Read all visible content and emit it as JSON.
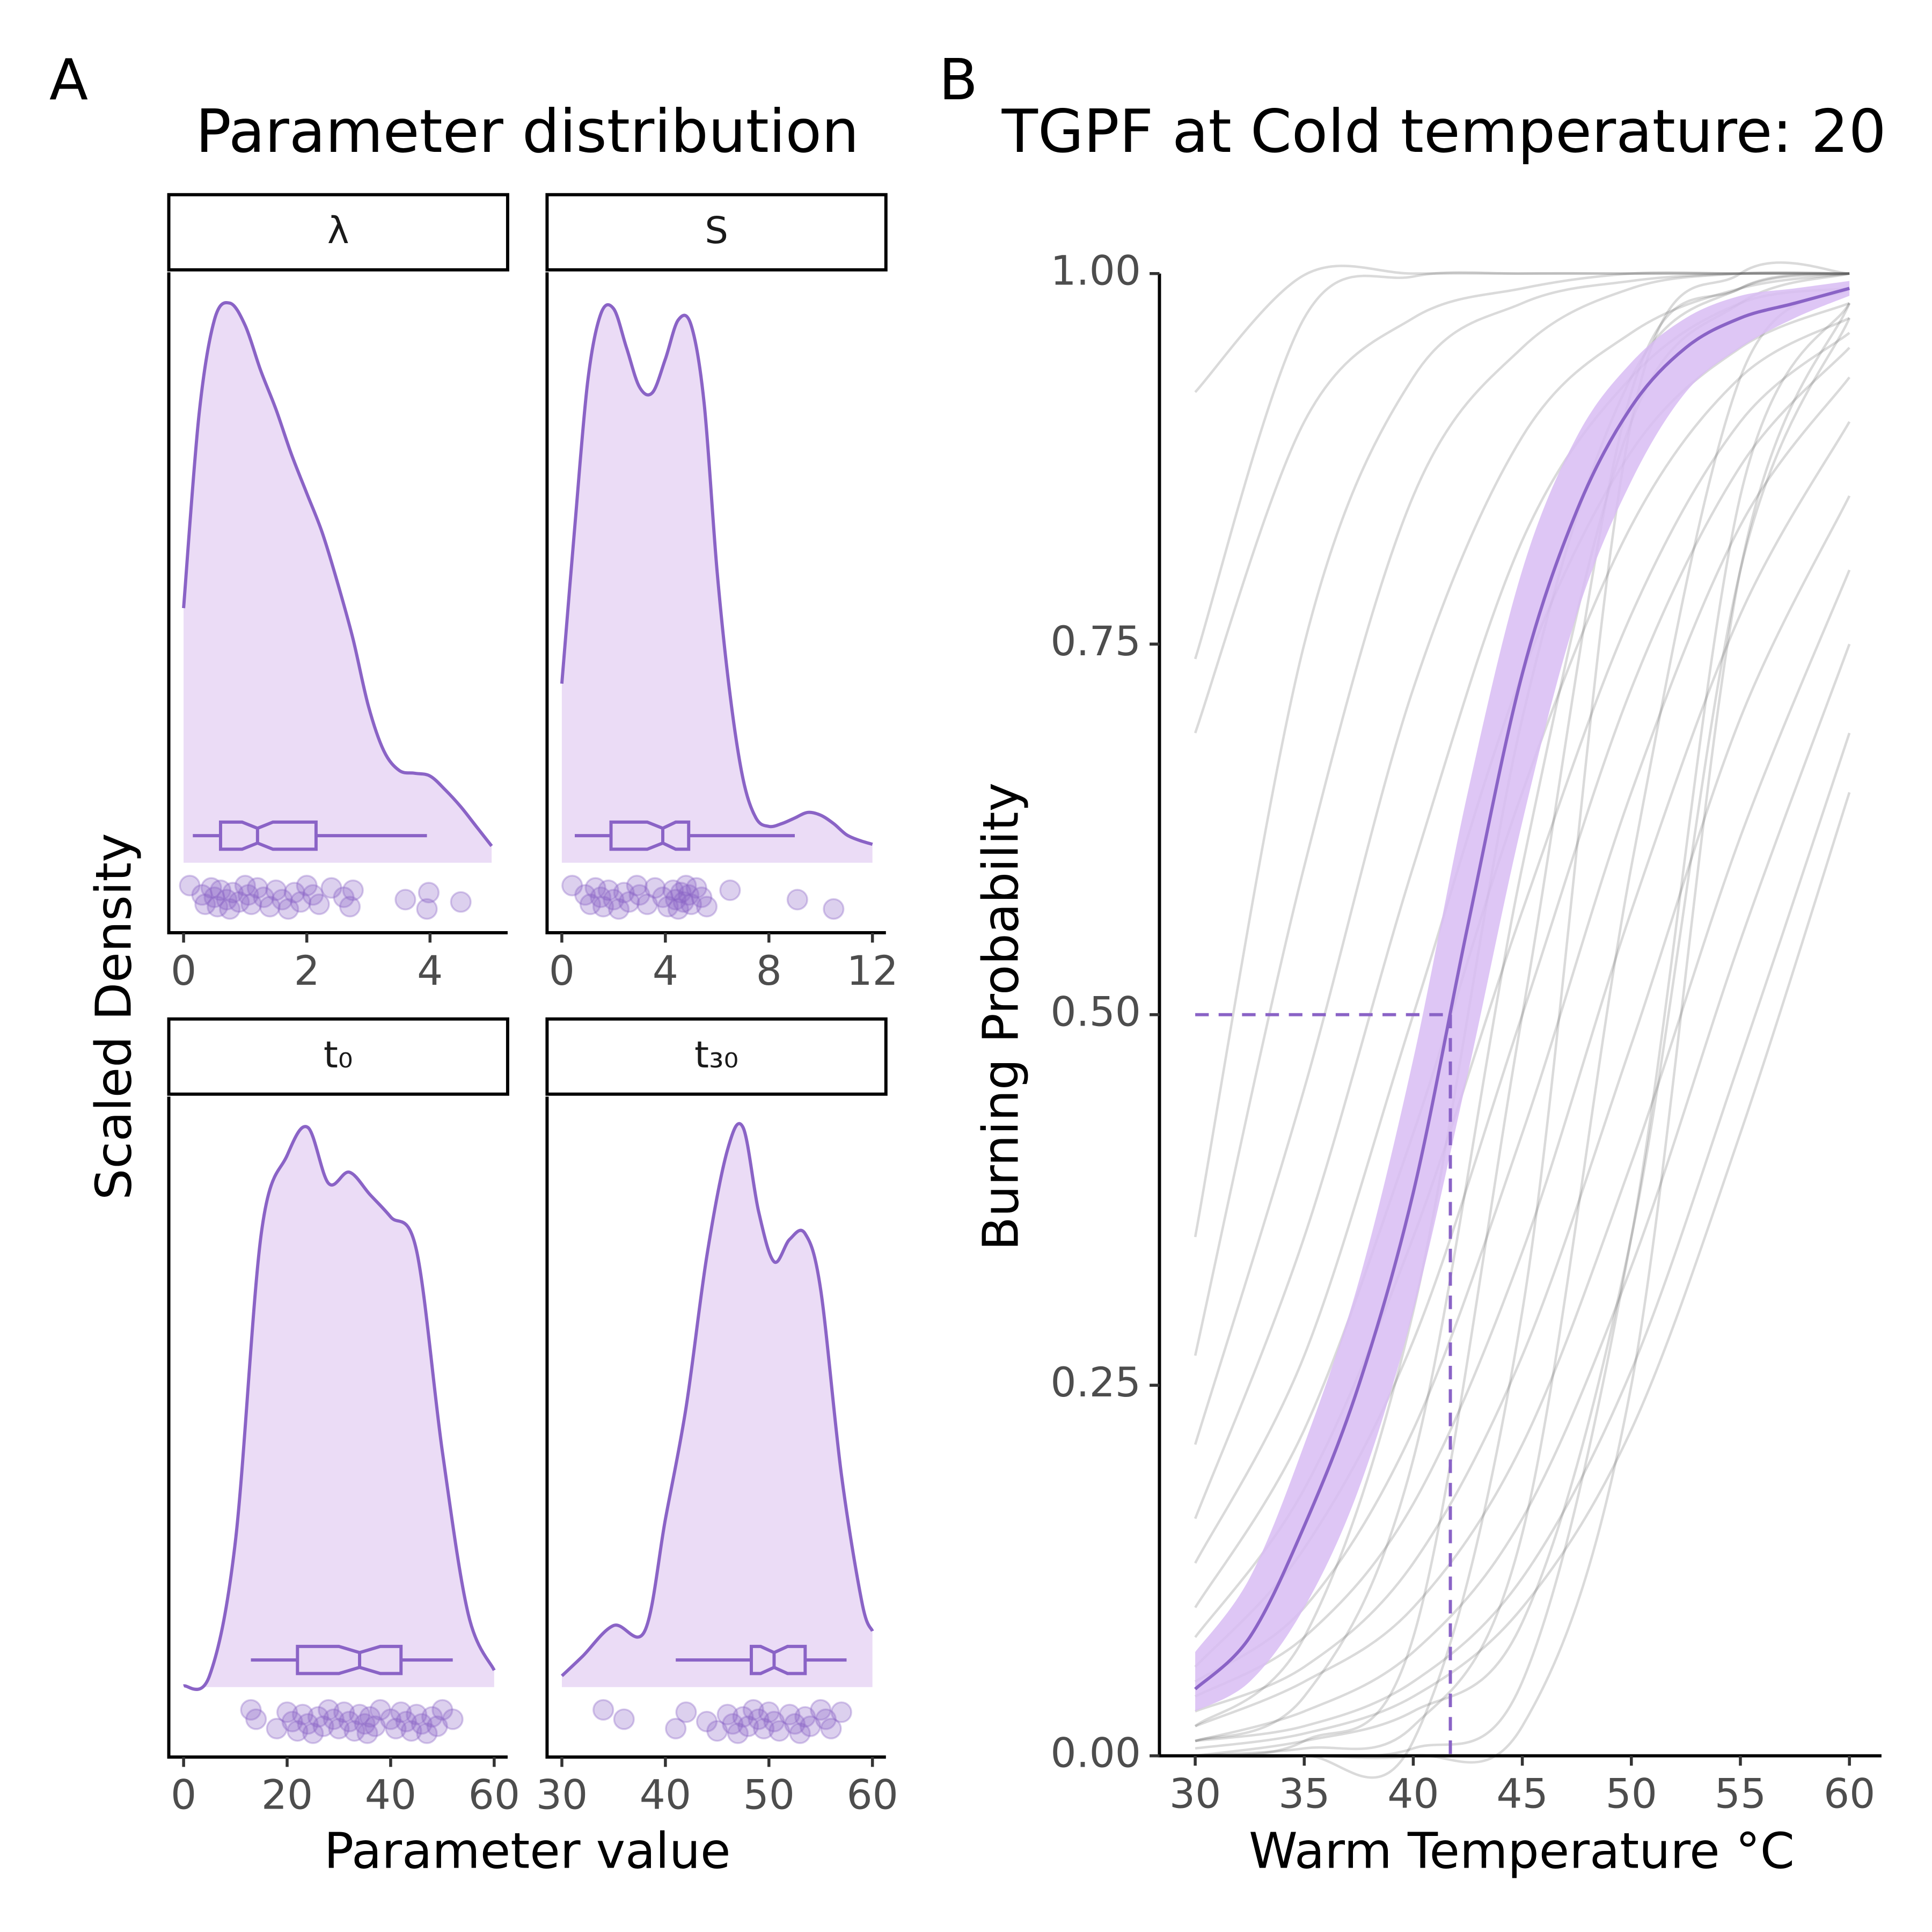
{
  "chart_data": [
    {
      "type": "density",
      "panel": "A",
      "title": "Parameter distribution",
      "xlabel": "Parameter value",
      "ylabel": "Scaled Density",
      "color": "#8a63c6",
      "fill_color": "#ebdcf6",
      "ylim": [
        -0.125,
        1.055
      ],
      "facets": [
        {
          "strip": "λ",
          "xlim": [
            -0.24,
            5.26
          ],
          "xticks": [
            0,
            2,
            4
          ],
          "x": [
            0,
            0.25,
            0.5,
            0.75,
            1,
            1.25,
            1.5,
            1.75,
            2,
            2.25,
            2.5,
            2.75,
            3,
            3.25,
            3.5,
            3.75,
            4,
            4.25,
            4.5,
            4.75,
            5
          ],
          "density": [
            0.455,
            0.8,
            0.97,
            1.0,
            0.96,
            0.88,
            0.81,
            0.73,
            0.66,
            0.59,
            0.5,
            0.4,
            0.28,
            0.2,
            0.165,
            0.16,
            0.155,
            0.13,
            0.1,
            0.065,
            0.03
          ],
          "box": {
            "whisker_low": 0.15,
            "q1": 0.6,
            "notch_low": 0.95,
            "median": 1.2,
            "notch_high": 1.45,
            "q3": 2.15,
            "whisker_high": 3.95
          },
          "points": [
            0.1,
            0.3,
            0.35,
            0.45,
            0.5,
            0.55,
            0.6,
            0.7,
            0.75,
            0.8,
            0.9,
            1.0,
            1.05,
            1.1,
            1.2,
            1.3,
            1.4,
            1.5,
            1.6,
            1.7,
            1.8,
            1.9,
            2.0,
            2.1,
            2.2,
            2.4,
            2.6,
            2.7,
            2.75,
            3.6,
            3.95,
            3.98,
            4.5
          ]
        },
        {
          "strip": "S",
          "xlim": [
            -0.57,
            12.52
          ],
          "xticks": [
            0,
            4,
            8,
            12
          ],
          "x": [
            0,
            0.5,
            1,
            1.5,
            2,
            2.5,
            3,
            3.5,
            4,
            4.5,
            5,
            5.5,
            6,
            6.5,
            7,
            7.5,
            8,
            8.5,
            9,
            9.5,
            10,
            10.5,
            11,
            11.5,
            12
          ],
          "density": [
            0.32,
            0.6,
            0.86,
            0.98,
            0.99,
            0.92,
            0.85,
            0.84,
            0.9,
            0.97,
            0.96,
            0.82,
            0.52,
            0.3,
            0.15,
            0.08,
            0.065,
            0.07,
            0.08,
            0.09,
            0.085,
            0.07,
            0.05,
            0.04,
            0.033
          ],
          "box": {
            "whisker_low": 0.5,
            "q1": 1.9,
            "notch_low": 3.3,
            "median": 3.9,
            "notch_high": 4.4,
            "q3": 4.9,
            "whisker_high": 9
          },
          "points": [
            0.4,
            0.9,
            1.1,
            1.3,
            1.5,
            1.6,
            1.8,
            2.0,
            2.2,
            2.4,
            2.6,
            2.9,
            3.0,
            3.3,
            3.6,
            3.9,
            4.1,
            4.3,
            4.4,
            4.5,
            4.6,
            4.7,
            4.8,
            4.9,
            5.0,
            5.2,
            5.4,
            5.6,
            6.5,
            9.1,
            10.5
          ]
        },
        {
          "strip": "t₀",
          "xlim": [
            -2.86,
            62.6
          ],
          "xticks": [
            0,
            20,
            40,
            60
          ],
          "x": [
            0,
            5,
            10,
            15,
            20,
            24,
            28,
            32,
            36,
            40,
            45,
            50,
            55,
            60
          ],
          "density": [
            0.002,
            0.02,
            0.26,
            0.81,
            0.95,
            1.0,
            0.9,
            0.92,
            0.88,
            0.84,
            0.78,
            0.42,
            0.13,
            0.03
          ],
          "box": {
            "whisker_low": 13,
            "q1": 22,
            "notch_low": 30,
            "median": 34,
            "notch_high": 38,
            "q3": 42,
            "whisker_high": 52
          },
          "points": [
            13,
            14,
            18,
            20,
            21,
            22,
            23,
            24,
            25,
            26,
            27,
            28,
            29,
            30,
            31,
            32,
            33,
            34,
            35,
            35.5,
            36,
            37,
            38,
            40,
            41,
            42,
            43,
            44,
            45,
            46,
            47,
            48,
            49,
            50,
            52
          ]
        },
        {
          "strip": "t₃₀",
          "xlim": [
            28.57,
            61.3
          ],
          "xticks": [
            30,
            40,
            50,
            60
          ],
          "x": [
            30,
            32,
            35,
            38,
            40,
            42,
            44,
            46,
            47.5,
            49,
            50.5,
            52,
            53.5,
            55,
            57,
            59,
            60
          ],
          "density": [
            0.02,
            0.055,
            0.11,
            0.1,
            0.3,
            0.5,
            0.77,
            0.96,
            1.0,
            0.85,
            0.76,
            0.8,
            0.81,
            0.71,
            0.38,
            0.15,
            0.1
          ],
          "box": {
            "whisker_low": 41,
            "q1": 48.3,
            "notch_low": 49.2,
            "median": 50.5,
            "notch_high": 51.8,
            "q3": 53.5,
            "whisker_high": 57.5
          },
          "points": [
            34,
            36,
            41,
            42,
            44,
            45,
            46,
            46.5,
            47,
            47.5,
            48,
            48.5,
            49,
            49.5,
            50,
            50.5,
            51,
            52,
            52.5,
            53,
            53.5,
            54,
            55,
            55.5,
            56,
            57
          ]
        }
      ]
    },
    {
      "type": "line",
      "panel": "B",
      "title": "TGPF at Cold temperature: 20",
      "xlabel": "Warm Temperature °C",
      "ylabel": "Burning Probability",
      "xlim": [
        28.36,
        61.47
      ],
      "ylim": [
        0,
        1
      ],
      "xticks": [
        30,
        35,
        40,
        45,
        50,
        55,
        60
      ],
      "yticks": [
        {
          "value": 0,
          "label": "0.00"
        },
        {
          "value": 0.25,
          "label": "0.25"
        },
        {
          "value": 0.5,
          "label": "0.50"
        },
        {
          "value": 0.75,
          "label": "0.75"
        },
        {
          "value": 1,
          "label": "1.00"
        }
      ],
      "gray_color": "#555555",
      "x": [
        30,
        35,
        40,
        45,
        50,
        55,
        60
      ],
      "series": [
        {
          "values": [
            0.92,
            0.999,
            1,
            1,
            1,
            1,
            1
          ]
        },
        {
          "values": [
            0.74,
            0.97,
            0.998,
            1,
            1,
            1,
            1
          ]
        },
        {
          "values": [
            0.69,
            0.9,
            0.97,
            0.99,
            1,
            1,
            1
          ]
        },
        {
          "values": [
            0.35,
            0.75,
            0.93,
            0.98,
            0.995,
            1,
            1
          ]
        },
        {
          "values": [
            0.27,
            0.6,
            0.85,
            0.95,
            0.99,
            1,
            1
          ]
        },
        {
          "values": [
            0.21,
            0.45,
            0.72,
            0.89,
            0.96,
            0.99,
            1
          ]
        },
        {
          "values": [
            0.16,
            0.35,
            0.6,
            0.82,
            0.93,
            0.98,
            0.99
          ]
        },
        {
          "values": [
            0.13,
            0.27,
            0.5,
            0.73,
            0.88,
            0.95,
            0.98
          ]
        },
        {
          "values": [
            0.1,
            0.22,
            0.42,
            0.65,
            0.83,
            0.93,
            0.97
          ]
        },
        {
          "values": [
            0.08,
            0.18,
            0.35,
            0.57,
            0.77,
            0.9,
            0.96
          ]
        },
        {
          "values": [
            0.06,
            0.14,
            0.28,
            0.5,
            0.72,
            0.87,
            0.95
          ]
        },
        {
          "values": [
            0.05,
            0.1,
            0.22,
            0.42,
            0.65,
            0.83,
            0.93
          ]
        },
        {
          "values": [
            0.04,
            0.08,
            0.17,
            0.34,
            0.57,
            0.77,
            0.9
          ]
        },
        {
          "values": [
            0.03,
            0.06,
            0.13,
            0.27,
            0.48,
            0.7,
            0.85
          ]
        },
        {
          "values": [
            0.02,
            0.05,
            0.1,
            0.21,
            0.4,
            0.62,
            0.8
          ]
        },
        {
          "values": [
            0.01,
            0.03,
            0.07,
            0.16,
            0.33,
            0.55,
            0.75
          ]
        },
        {
          "values": [
            0.01,
            0.02,
            0.05,
            0.12,
            0.26,
            0.47,
            0.69
          ]
        },
        {
          "values": [
            0.005,
            0.015,
            0.04,
            0.1,
            0.22,
            0.42,
            0.65
          ]
        },
        {
          "values": [
            0,
            0.01,
            0.03,
            0.09,
            0.35,
            0.8,
            0.97
          ]
        },
        {
          "values": [
            0,
            0.005,
            0.02,
            0.15,
            0.6,
            0.93,
            0.99
          ]
        },
        {
          "values": [
            0,
            0,
            0.01,
            0.3,
            0.9,
            1,
            1
          ]
        },
        {
          "values": [
            0,
            0.01,
            0.08,
            0.5,
            0.92,
            0.99,
            1
          ]
        },
        {
          "values": [
            0,
            0,
            0.005,
            0.05,
            0.35,
            0.85,
            0.98
          ]
        },
        {
          "values": [
            0,
            0,
            0,
            0.02,
            0.25,
            0.8,
            0.98
          ]
        },
        {
          "values": [
            0.01,
            0.04,
            0.2,
            0.6,
            0.9,
            0.98,
            1
          ]
        },
        {
          "values": [
            0.02,
            0.08,
            0.3,
            0.7,
            0.93,
            0.99,
            1
          ]
        }
      ],
      "fit": {
        "color": "#8a63c6",
        "ribbon_color": "#d8bcf3",
        "x": [
          30,
          32.5,
          35,
          37.5,
          40,
          42.5,
          45,
          47.5,
          50,
          52.5,
          55,
          57.5,
          60
        ],
        "values": [
          0.045,
          0.08,
          0.155,
          0.25,
          0.38,
          0.56,
          0.73,
          0.84,
          0.91,
          0.95,
          0.97,
          0.98,
          0.99
        ],
        "lower": [
          0.03,
          0.05,
          0.1,
          0.18,
          0.3,
          0.46,
          0.63,
          0.77,
          0.86,
          0.92,
          0.95,
          0.97,
          0.985
        ],
        "upper": [
          0.07,
          0.12,
          0.21,
          0.32,
          0.47,
          0.65,
          0.8,
          0.89,
          0.94,
          0.97,
          0.985,
          0.99,
          0.995
        ]
      },
      "threshold": {
        "x": 41.7,
        "y": 0.5
      }
    }
  ]
}
